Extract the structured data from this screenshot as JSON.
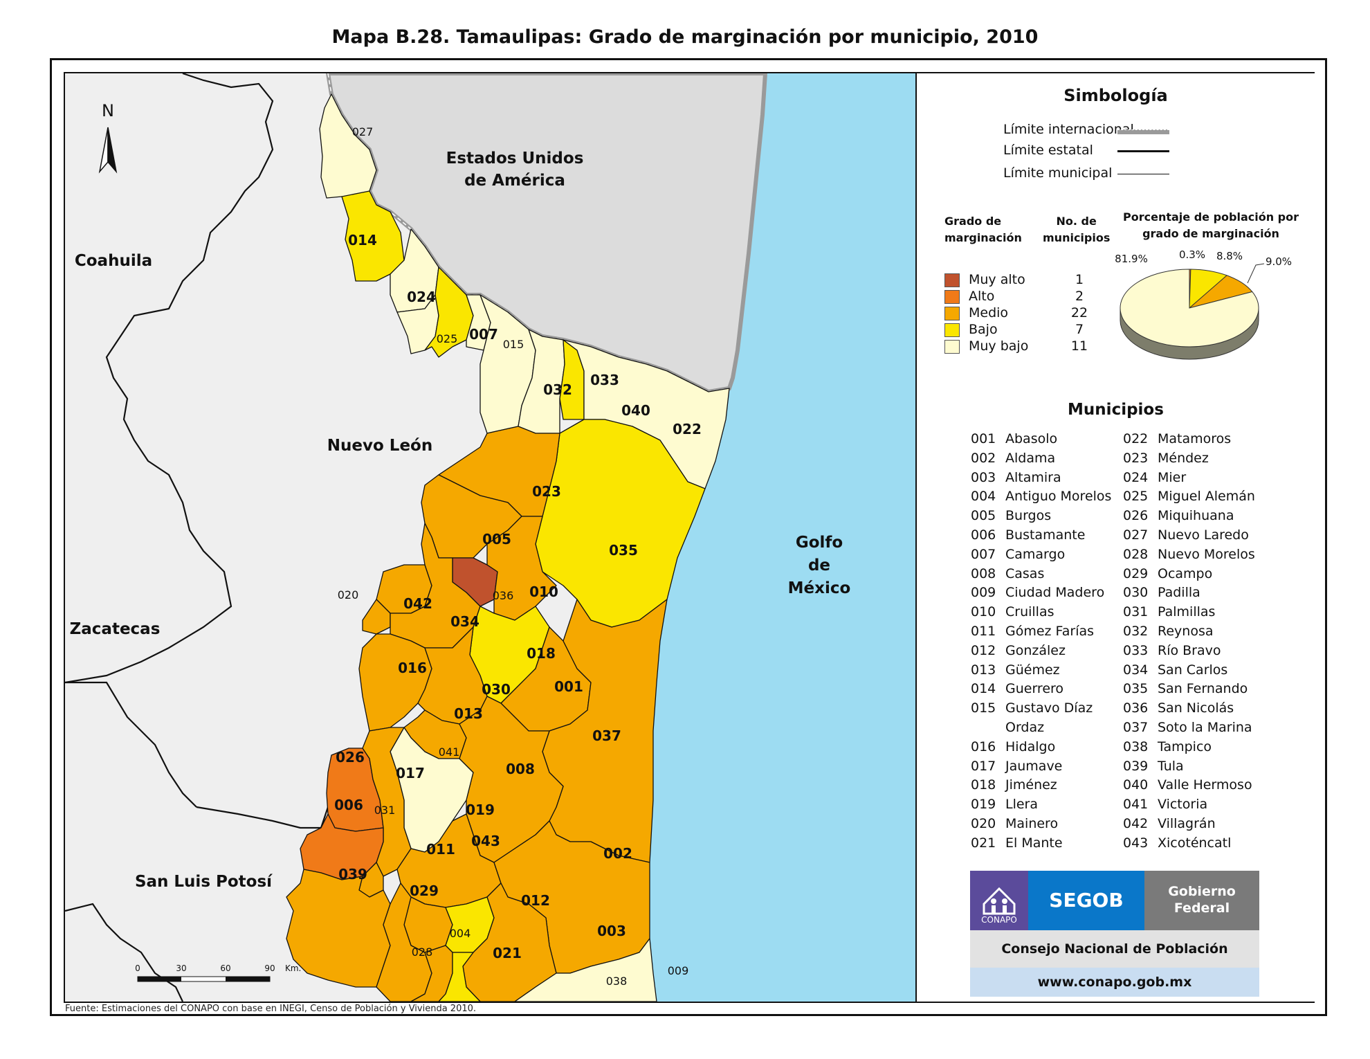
{
  "title": "Mapa B.28. Tamaulipas: Grado de marginación por municipio, 2010",
  "regions": {
    "coahuila": "Coahuila",
    "nuevo_leon": "Nuevo León",
    "zacatecas": "Zacatecas",
    "san_luis_potosi": "San Luis Potosí",
    "usa": [
      "Estados Unidos",
      "de América"
    ],
    "golfo": [
      "Golfo",
      "de",
      "México"
    ]
  },
  "north_label": "N",
  "scale": {
    "ticks": [
      "0",
      "30",
      "60",
      "90"
    ],
    "unit": "Km."
  },
  "source": "Fuente: Estimaciones del CONAPO con base en INEGI, Censo de Población y Vivienda 2010.",
  "legend": {
    "simbologia": "Simbología",
    "limits": [
      "Límite internacional",
      "Límite estatal",
      "Límite municipal"
    ],
    "grado_header": [
      "Grado de",
      "marginación"
    ],
    "no_header": [
      "No. de",
      "municipios"
    ],
    "classes": [
      {
        "label": "Muy alto",
        "count": "1",
        "color": "#c0522d"
      },
      {
        "label": "Alto",
        "count": "2",
        "color": "#f07a18"
      },
      {
        "label": "Medio",
        "count": "22",
        "color": "#f5a800"
      },
      {
        "label": "Bajo",
        "count": "7",
        "color": "#fae600"
      },
      {
        "label": "Muy bajo",
        "count": "11",
        "color": "#fefbd0"
      }
    ],
    "pie_title": [
      "Porcentaje de población por",
      "grado de marginación"
    ],
    "pie": [
      {
        "label": "81.9%",
        "value": 81.9,
        "color": "#fefbd0"
      },
      {
        "label": "0.3%",
        "value": 0.3,
        "color": "#f07a18"
      },
      {
        "label": "8.8%",
        "value": 8.8,
        "color": "#fae600"
      },
      {
        "label": "9.0%",
        "value": 9.0,
        "color": "#f5a800"
      }
    ],
    "municipios_title": "Municipios",
    "municipios_left": [
      [
        "001",
        "Abasolo"
      ],
      [
        "002",
        "Aldama"
      ],
      [
        "003",
        "Altamira"
      ],
      [
        "004",
        "Antiguo Morelos"
      ],
      [
        "005",
        "Burgos"
      ],
      [
        "006",
        "Bustamante"
      ],
      [
        "007",
        "Camargo"
      ],
      [
        "008",
        "Casas"
      ],
      [
        "009",
        "Ciudad Madero"
      ],
      [
        "010",
        "Cruillas"
      ],
      [
        "011",
        "Gómez Farías"
      ],
      [
        "012",
        "González"
      ],
      [
        "013",
        "Güémez"
      ],
      [
        "014",
        "Guerrero"
      ],
      [
        "015",
        "Gustavo Díaz"
      ],
      [
        "",
        "Ordaz"
      ],
      [
        "016",
        "Hidalgo"
      ],
      [
        "017",
        "Jaumave"
      ],
      [
        "018",
        "Jiménez"
      ],
      [
        "019",
        "Llera"
      ],
      [
        "020",
        "Mainero"
      ],
      [
        "021",
        "El Mante"
      ]
    ],
    "municipios_right": [
      [
        "022",
        "Matamoros"
      ],
      [
        "023",
        "Méndez"
      ],
      [
        "024",
        "Mier"
      ],
      [
        "025",
        "Miguel Alemán"
      ],
      [
        "026",
        "Miquihuana"
      ],
      [
        "027",
        "Nuevo Laredo"
      ],
      [
        "028",
        "Nuevo Morelos"
      ],
      [
        "029",
        "Ocampo"
      ],
      [
        "030",
        "Padilla"
      ],
      [
        "031",
        "Palmillas"
      ],
      [
        "032",
        "Reynosa"
      ],
      [
        "033",
        "Río Bravo"
      ],
      [
        "034",
        "San Carlos"
      ],
      [
        "035",
        "San Fernando"
      ],
      [
        "036",
        "San Nicolás"
      ],
      [
        "037",
        "Soto la Marina"
      ],
      [
        "038",
        "Tampico"
      ],
      [
        "039",
        "Tula"
      ],
      [
        "040",
        "Valle Hermoso"
      ],
      [
        "041",
        "Victoria"
      ],
      [
        "042",
        "Villagrán"
      ],
      [
        "043",
        "Xicoténcatl"
      ]
    ],
    "logos": {
      "conapo": "CONAPO",
      "segob": "SEGOB",
      "gobierno": [
        "Gobierno",
        "Federal"
      ],
      "consejo": "Consejo Nacional de Población",
      "url": "www.conapo.gob.mx"
    }
  },
  "colors": {
    "muy_alto": "#c0522d",
    "alto": "#f07a18",
    "medio": "#f5a800",
    "bajo": "#fae600",
    "muy_bajo": "#fefbd0",
    "water": "#9ddcf2",
    "land": "#efefef",
    "usa": "#dcdcdc"
  }
}
